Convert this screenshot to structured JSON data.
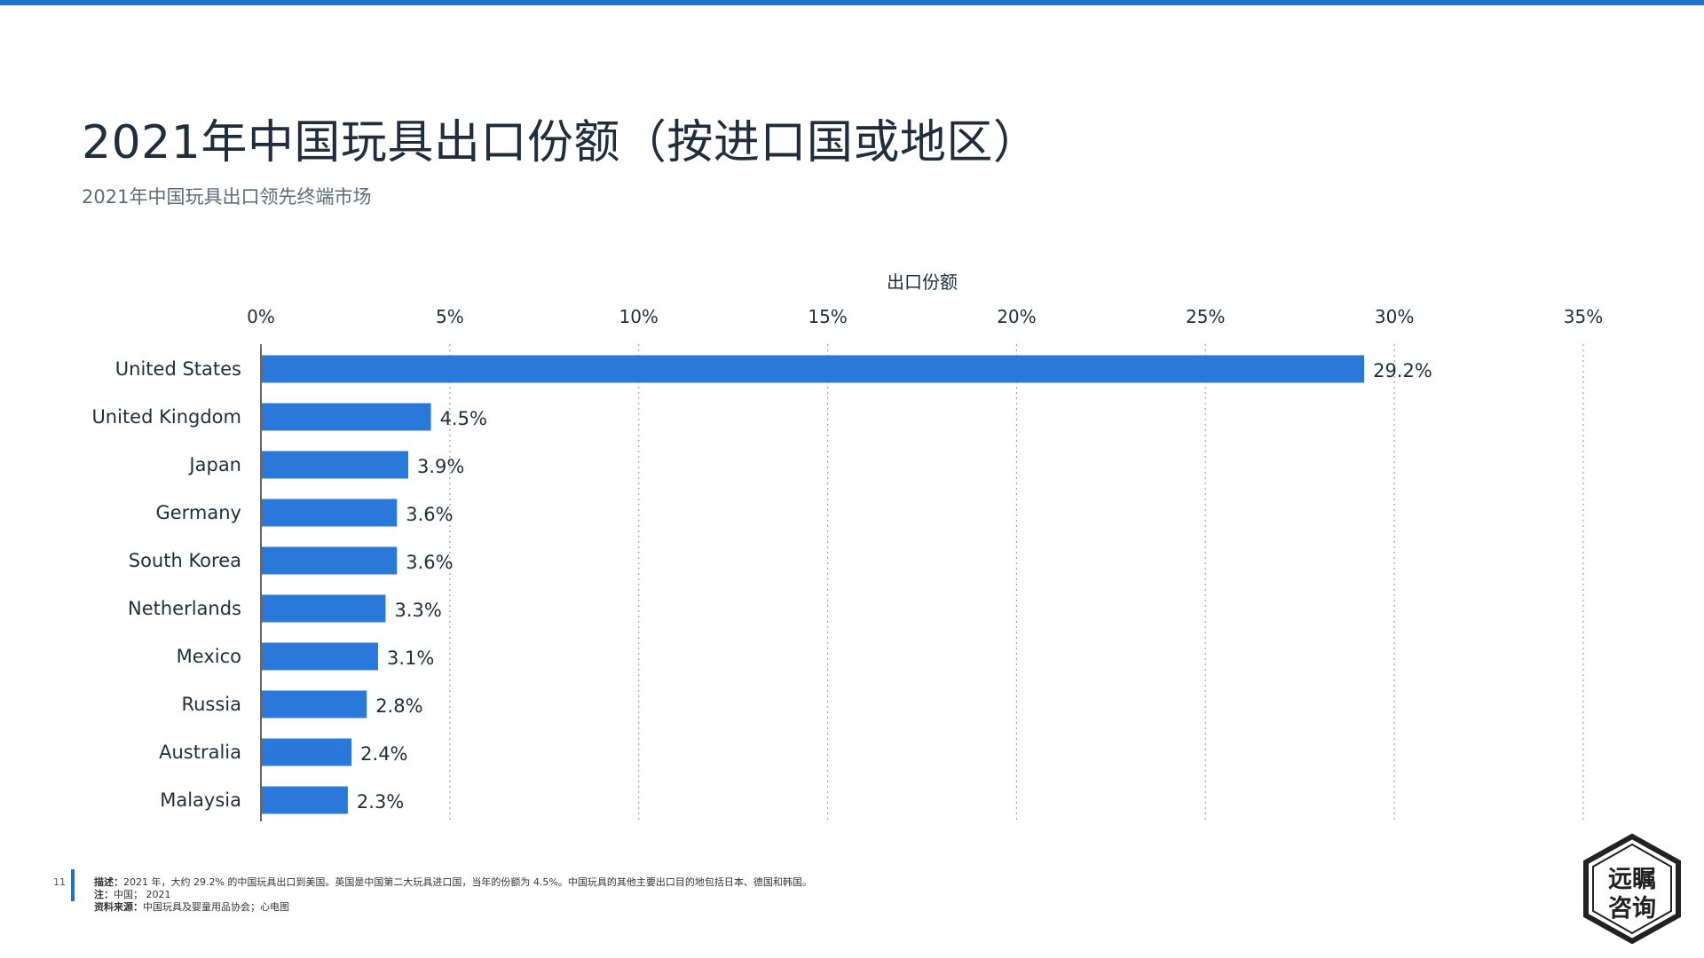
{
  "header": {
    "title": "2021年中国玩具出口份额（按进口国或地区）",
    "subtitle": "2021年中国玩具出口领先终端市场"
  },
  "chart_data": {
    "type": "bar",
    "orientation": "horizontal",
    "title": "2021年中国玩具出口份额（按进口国或地区）",
    "subtitle": "2021年中国玩具出口领先终端市场",
    "xlabel": "出口份额",
    "ylabel": "",
    "xlim": [
      0,
      35
    ],
    "x_ticks": [
      "0%",
      "5%",
      "10%",
      "15%",
      "20%",
      "25%",
      "30%",
      "35%"
    ],
    "grid": "vertical dotted",
    "categories": [
      "United States",
      "United Kingdom",
      "Japan",
      "Germany",
      "South Korea",
      "Netherlands",
      "Mexico",
      "Russia",
      "Australia",
      "Malaysia"
    ],
    "values": [
      29.2,
      4.5,
      3.9,
      3.6,
      3.6,
      3.3,
      3.1,
      2.8,
      2.4,
      2.3
    ],
    "value_labels": [
      "29.2%",
      "4.5%",
      "3.9%",
      "3.6%",
      "3.6%",
      "3.3%",
      "3.1%",
      "2.8%",
      "2.4%",
      "2.3%"
    ],
    "bar_color": "#2b78db"
  },
  "footer": {
    "page_number": "11",
    "desc_label": "描述：",
    "desc_text": "2021 年，大约 29.2% 的中国玩具出口到美国。英国是中国第二大玩具进口国，当年的份额为 4.5%。中国玩具的其他主要出口目的地包括日本、德国和韩国。",
    "note_label": "注：",
    "note_text": "中国； 2021",
    "source_label": "资料来源：",
    "source_text": "中国玩具及婴童用品协会；心电图"
  },
  "logo": {
    "text_line1": "远瞩",
    "text_line2": "咨询"
  },
  "colors": {
    "accent": "#1a73c9",
    "bar": "#2b78db",
    "title": "#1f2d3d",
    "subtitle": "#5d6b7a"
  }
}
